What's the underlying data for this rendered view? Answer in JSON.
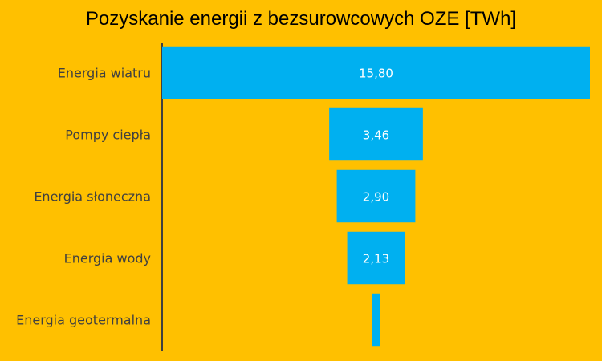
{
  "chart_data": {
    "type": "bar",
    "orientation": "horizontal-funnel",
    "title": "Pozyskanie energii z bezsurowcowych OZE [TWh]",
    "categories": [
      "Energia wiatru",
      "Pompy ciepła",
      "Energia słoneczna",
      "Energia wody",
      "Energia geotermalna"
    ],
    "values": [
      15.8,
      3.46,
      2.9,
      2.13,
      0.27
    ],
    "value_labels": [
      "15,80",
      "3,46",
      "2,90",
      "2,13",
      ""
    ],
    "xlabel": "",
    "ylabel": "",
    "grid": false,
    "legend": "none",
    "colors": {
      "bar": "#00B0F0",
      "background": "#FFC000",
      "axis": "#404040"
    }
  }
}
